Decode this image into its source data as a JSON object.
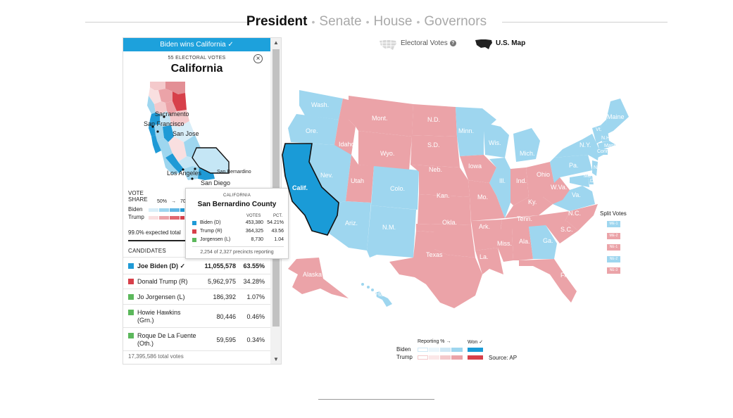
{
  "nav": {
    "tabs": [
      "President",
      "Senate",
      "House",
      "Governors"
    ],
    "active": "President",
    "separator": "•"
  },
  "panel": {
    "winner_banner": "Biden wins California ✓",
    "electoral_votes_label": "55 ELECTORAL VOTES",
    "state_name": "California",
    "close_label": "×",
    "cities": [
      "Sacramento",
      "San Francisco",
      "San Jose",
      "Los Angeles",
      "San Bernardino",
      "San Diego"
    ],
    "vote_share_label": [
      "VOTE",
      "SHARE"
    ],
    "legend_scale": [
      "50%",
      "→",
      "70"
    ],
    "legend_biden": "Biden",
    "legend_trump": "Trump",
    "expected_total": "99.0% expected total",
    "candidates_header": "CANDIDATES",
    "candidates": [
      {
        "name": "Joe Biden (D) ✓",
        "votes": "11,055,578",
        "pct": "63.55%",
        "color": "#1f9ad6"
      },
      {
        "name": "Donald Trump (R)",
        "votes": "5,962,975",
        "pct": "34.28%",
        "color": "#d7404a"
      },
      {
        "name": "Jo Jorgensen (L)",
        "votes": "186,392",
        "pct": "1.07%",
        "color": "#5cb85c"
      },
      {
        "name": "Howie Hawkins (Grn.)",
        "votes": "80,446",
        "pct": "0.46%",
        "color": "#5cb85c"
      },
      {
        "name": "Roque De La Fuente (Oth.)",
        "votes": "59,595",
        "pct": "0.34%",
        "color": "#5cb85c"
      }
    ],
    "total_votes": "17,395,586 total votes"
  },
  "tooltip": {
    "state": "CALIFORNIA",
    "county": "San Bernardino County",
    "col_votes": "VOTES",
    "col_pct": "PCT.",
    "rows": [
      {
        "name": "Biden (D)",
        "votes": "453,380",
        "pct": "54.21%",
        "color": "#1f9ad6"
      },
      {
        "name": "Trump (R)",
        "votes": "364,325",
        "pct": "43.56",
        "color": "#d7404a"
      },
      {
        "name": "Jorgensen (L)",
        "votes": "8,730",
        "pct": "1.04",
        "color": "#5cb85c"
      }
    ],
    "precincts": "2,254 of 2,327 precincts reporting"
  },
  "toggles": {
    "electoral_votes": "Electoral Votes",
    "help": "?",
    "us_map": "U.S. Map"
  },
  "map": {
    "colors": {
      "dem": "#9ed6ef",
      "rep": "#eba3a8",
      "selected": "#1a9bd7",
      "neutral": "#ffffff"
    },
    "state_labels": [
      "Wash.",
      "Ore.",
      "Calif.",
      "Nev.",
      "Idaho",
      "Mont.",
      "Wyo.",
      "Utah",
      "Ariz.",
      "Colo.",
      "N.M.",
      "N.D.",
      "S.D.",
      "Neb.",
      "Kan.",
      "Okla.",
      "Texas",
      "Minn.",
      "Iowa",
      "Mo.",
      "Ark.",
      "La.",
      "Wis.",
      "Ill.",
      "Mich.",
      "Ind.",
      "Ohio",
      "Ky.",
      "Tenn.",
      "Miss.",
      "Ala.",
      "Ga.",
      "Fla.",
      "S.C.",
      "N.C.",
      "Va.",
      "W.Va.",
      "Pa.",
      "N.Y.",
      "Vt.",
      "N.H.",
      "Maine",
      "Mass.",
      "Conn.",
      "N.J.",
      "Del.",
      "Md.",
      "Alaska",
      "Hawaii"
    ],
    "selected_state": "Calif."
  },
  "split_votes": {
    "title": "Split Votes",
    "boxes": [
      "ME-1",
      "ME-2",
      "NE-1",
      "NE-2",
      "NE-3"
    ]
  },
  "legend": {
    "reporting": "Reporting % →",
    "won": "Won ✓",
    "biden": "Biden",
    "trump": "Trump",
    "source": "Source: AP"
  }
}
